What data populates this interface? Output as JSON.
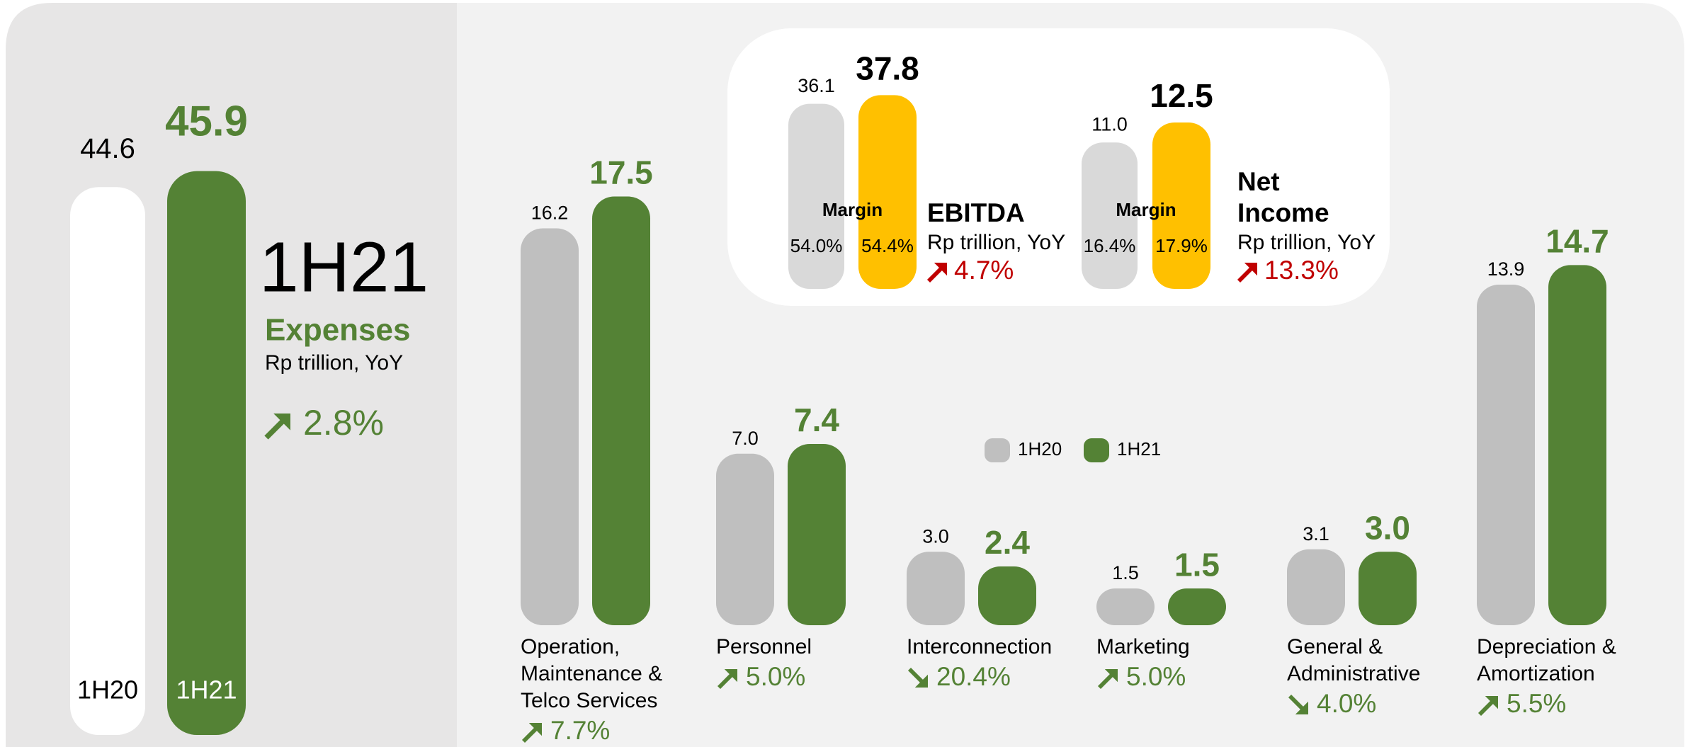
{
  "chart_data": [
    {
      "type": "bar",
      "title": "1H21",
      "subtitle": "Expenses",
      "unit": "Rp trillion, YoY",
      "change": "2.8%",
      "direction": "up",
      "categories": [
        "1H20",
        "1H21"
      ],
      "values": [
        44.6,
        45.9
      ],
      "colors": [
        "#ffffff",
        "#548235"
      ]
    },
    {
      "type": "grouped-bar",
      "categories": [
        [
          "Operation,",
          "Maintenance &",
          "Telco Services"
        ],
        [
          "Personnel"
        ],
        [
          "Interconnection"
        ],
        [
          "Marketing"
        ],
        [
          "General &",
          "Administrative"
        ],
        [
          "Depreciation &",
          "Amortization"
        ]
      ],
      "series": [
        {
          "name": "1H20",
          "color": "#bfbfbf",
          "values": [
            16.2,
            7.0,
            3.0,
            1.5,
            3.1,
            13.9
          ],
          "value_labels": [
            "16.2",
            "7.0",
            "3.0",
            "1.5",
            "3.1",
            "13.9"
          ]
        },
        {
          "name": "1H21",
          "color": "#548235",
          "values": [
            17.5,
            7.4,
            2.4,
            1.5,
            3.0,
            14.7
          ],
          "value_labels": [
            "17.5",
            "7.4",
            "2.4",
            "1.5",
            "3.0",
            "14.7"
          ]
        }
      ],
      "changes": [
        "7.7%",
        "5.0%",
        "20.4%",
        "5.0%",
        "4.0%",
        "5.5%"
      ],
      "directions": [
        "up",
        "up",
        "down",
        "up",
        "down",
        "up"
      ]
    },
    {
      "type": "kpi-bar",
      "title": [
        "EBITDA"
      ],
      "unit": "Rp trillion, YoY",
      "change": "4.7%",
      "direction": "up",
      "values": [
        36.1,
        37.8
      ],
      "colors": [
        "#d9d9d9",
        "#ffc000"
      ],
      "margin_title": "Margin",
      "margins": [
        "54.0%",
        "54.4%"
      ]
    },
    {
      "type": "kpi-bar",
      "title": [
        "Net",
        "Income"
      ],
      "unit": "Rp trillion, YoY",
      "change": "13.3%",
      "direction": "up",
      "values": [
        11.0,
        12.5
      ],
      "value_labels": [
        "11.0",
        "12.5"
      ],
      "colors": [
        "#d9d9d9",
        "#ffc000"
      ],
      "margin_title": "Margin",
      "margins": [
        "16.4%",
        "17.9%"
      ]
    }
  ]
}
